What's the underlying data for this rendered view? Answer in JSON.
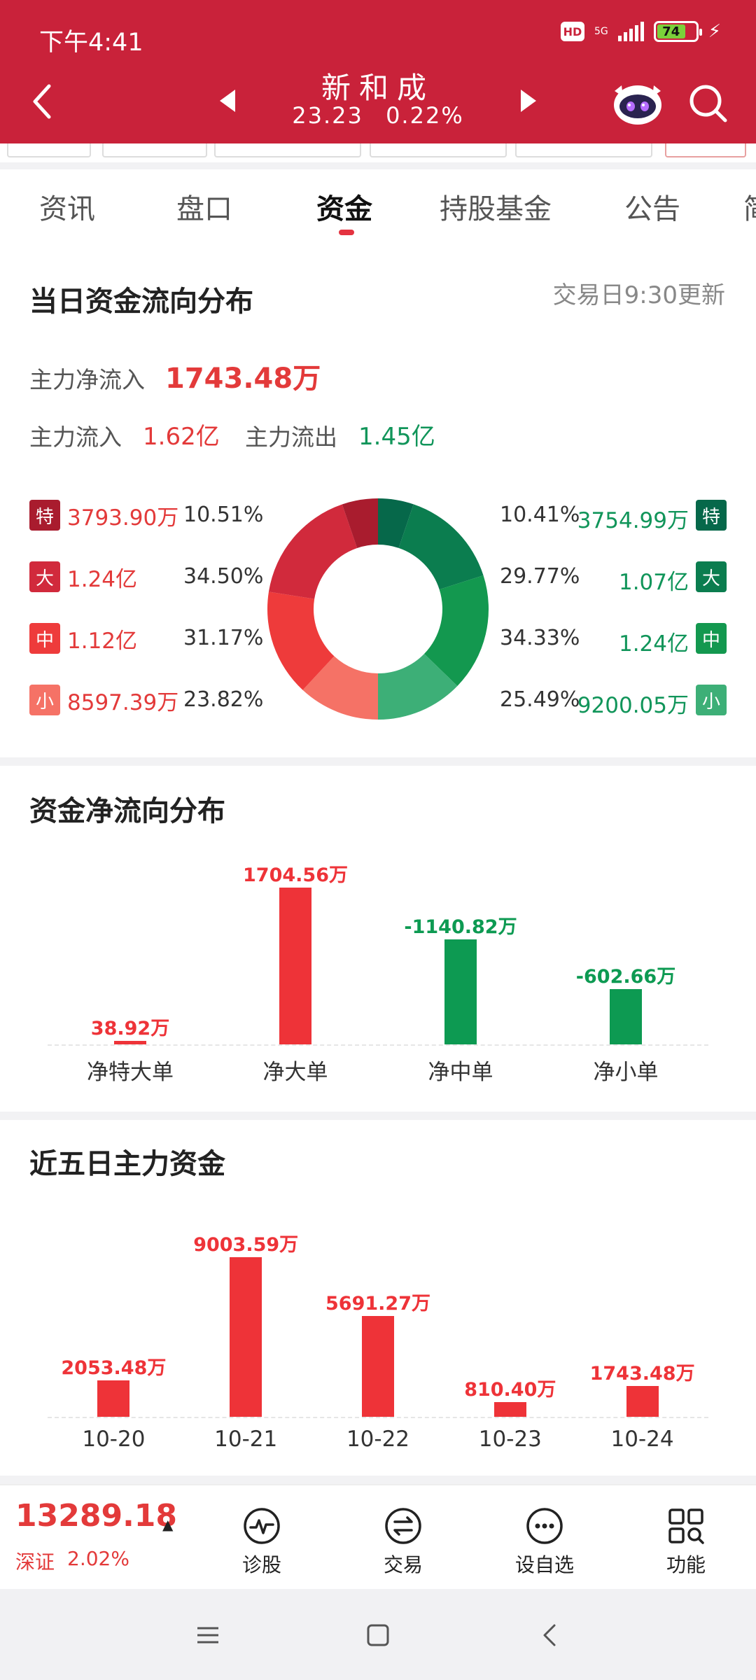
{
  "status_bar": {
    "time": "下午4:41",
    "hd": "HD",
    "network": "5G",
    "battery": "74"
  },
  "header": {
    "stock_name": "新和成",
    "price": "23.23",
    "change_pct": "0.22%"
  },
  "tabs": [
    {
      "label": "资讯"
    },
    {
      "label": "盘口"
    },
    {
      "label": "资金"
    },
    {
      "label": "持股基金"
    },
    {
      "label": "公告"
    },
    {
      "label": "简"
    }
  ],
  "distribution": {
    "title": "当日资金流向分布",
    "update_note": "交易日9:30更新",
    "net_inflow_label": "主力净流入",
    "net_inflow_value": "1743.48万",
    "inflow_label": "主力流入",
    "inflow_value": "1.62亿",
    "outflow_label": "主力流出",
    "outflow_value": "1.45亿",
    "inflows": [
      {
        "badge": "特",
        "amount": "3793.90万",
        "pct": "10.51%",
        "color": "#a91c2e"
      },
      {
        "badge": "大",
        "amount": "1.24亿",
        "pct": "34.50%",
        "color": "#d12a3c"
      },
      {
        "badge": "中",
        "amount": "1.12亿",
        "pct": "31.17%",
        "color": "#ee3b3b"
      },
      {
        "badge": "小",
        "amount": "8597.39万",
        "pct": "23.82%",
        "color": "#f57266"
      }
    ],
    "outflows": [
      {
        "badge": "特",
        "amount": "3754.99万",
        "pct": "10.41%",
        "color": "#06684a"
      },
      {
        "badge": "大",
        "amount": "1.07亿",
        "pct": "29.77%",
        "color": "#0b7d4f"
      },
      {
        "badge": "中",
        "amount": "1.24亿",
        "pct": "34.33%",
        "color": "#13984f"
      },
      {
        "badge": "小",
        "amount": "9200.05万",
        "pct": "25.49%",
        "color": "#3daf77"
      }
    ]
  },
  "net_flow": {
    "title": "资金净流向分布",
    "chart_data": {
      "type": "bar",
      "categories": [
        "净特大单",
        "净大单",
        "净中单",
        "净小单"
      ],
      "values": [
        38.92,
        1704.56,
        -1140.82,
        -602.66
      ],
      "labels": [
        "38.92万",
        "1704.56万",
        "-1140.82万",
        "-602.66万"
      ],
      "unit": "万",
      "positive_color": "#ee3338",
      "negative_color": "#0d9a52"
    }
  },
  "five_day": {
    "title": "近五日主力资金",
    "chart_data": {
      "type": "bar",
      "categories": [
        "10-20",
        "10-21",
        "10-22",
        "10-23",
        "10-24"
      ],
      "values": [
        2053.48,
        9003.59,
        5691.27,
        810.4,
        1743.48
      ],
      "labels": [
        "2053.48万",
        "9003.59万",
        "5691.27万",
        "810.40万",
        "1743.48万"
      ],
      "unit": "万",
      "positive_color": "#ee3338"
    }
  },
  "bottom_bar": {
    "index_value": "13289.18",
    "index_arrow": "▲",
    "index_name": "深证",
    "index_change": "2.02%",
    "nav": [
      {
        "label": "诊股",
        "icon": "diagnose-icon"
      },
      {
        "label": "交易",
        "icon": "trade-icon"
      },
      {
        "label": "设自选",
        "icon": "more-dots-icon"
      },
      {
        "label": "功能",
        "icon": "grid-search-icon"
      }
    ]
  },
  "colors": {
    "brand_red": "#c9223a",
    "up_red": "#e33a3a",
    "down_green": "#11955a"
  }
}
